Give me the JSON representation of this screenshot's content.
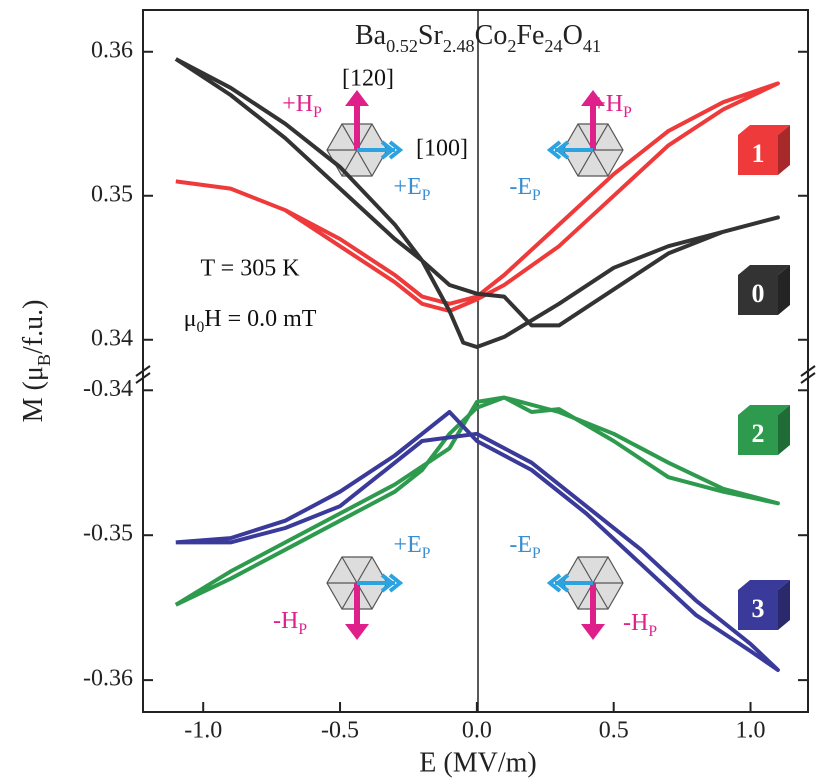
{
  "chart_data": [
    {
      "type": "line",
      "title": "Ba0.52Sr2.48Co2Fe24O41",
      "ylabel": "M (μB/f.u.)",
      "ylim": [
        0.3379,
        0.3629
      ],
      "yticks": [
        0.36,
        0.35,
        0.34
      ],
      "annotations": [
        "T = 305 K",
        "μ0H = 0.0 mT",
        "[120]",
        "[100]",
        "+HP",
        "+EP",
        "-EP",
        "+HP"
      ],
      "series": [
        {
          "name": "1",
          "color": "#ee3a3a",
          "x": [
            -1.1,
            -0.9,
            -0.7,
            -0.5,
            -0.3,
            -0.2,
            -0.1,
            0,
            0.1,
            0.3,
            0.5,
            0.7,
            0.9,
            1.1,
            0.9,
            0.7,
            0.5,
            0.3,
            0.1,
            0,
            -0.1,
            -0.2,
            -0.3,
            -0.5,
            -0.7,
            -0.9,
            -1.1
          ],
          "values": [
            0.351,
            0.3505,
            0.349,
            0.347,
            0.3445,
            0.343,
            0.3425,
            0.343,
            0.3445,
            0.348,
            0.3515,
            0.3545,
            0.3565,
            0.3578,
            0.356,
            0.3535,
            0.35,
            0.3465,
            0.3438,
            0.3428,
            0.342,
            0.3425,
            0.344,
            0.3465,
            0.349,
            0.3505,
            0.351
          ]
        },
        {
          "name": "0",
          "color": "#333333",
          "x": [
            -1.1,
            -0.9,
            -0.7,
            -0.5,
            -0.3,
            -0.2,
            -0.1,
            -0.05,
            0,
            0.1,
            0.3,
            0.5,
            0.7,
            0.9,
            1.1,
            0.9,
            0.7,
            0.5,
            0.3,
            0.2,
            0.1,
            0,
            -0.1,
            -0.2,
            -0.3,
            -0.5,
            -0.7,
            -0.9,
            -1.1
          ],
          "values": [
            0.3595,
            0.3575,
            0.355,
            0.352,
            0.348,
            0.3455,
            0.342,
            0.3398,
            0.3395,
            0.3402,
            0.3425,
            0.345,
            0.3465,
            0.3475,
            0.3485,
            0.3475,
            0.346,
            0.3435,
            0.341,
            0.341,
            0.343,
            0.3432,
            0.3438,
            0.3455,
            0.347,
            0.3505,
            0.354,
            0.357,
            0.3595
          ]
        }
      ]
    },
    {
      "type": "line",
      "xlabel": "E (MV/m)",
      "xlim": [
        -1.22,
        1.21
      ],
      "xticks": [
        {
          "value": -1,
          "label": "-1.0"
        },
        -0.5,
        {
          "value": 0,
          "label": "0.0"
        },
        0.5,
        {
          "value": 1,
          "label": "1.0"
        }
      ],
      "ylim": [
        -0.3622,
        -0.3386
      ],
      "yticks": [
        -0.34,
        -0.35,
        -0.36
      ],
      "annotations": [
        "+EP",
        "-EP",
        "-HP",
        "-HP"
      ],
      "series": [
        {
          "name": "2",
          "color": "#2e9a4e",
          "x": [
            -1.1,
            -0.9,
            -0.7,
            -0.5,
            -0.3,
            -0.1,
            0,
            0.1,
            0.2,
            0.3,
            0.5,
            0.7,
            0.9,
            1.1,
            0.9,
            0.7,
            0.5,
            0.3,
            0.1,
            0,
            -0.1,
            -0.2,
            -0.3,
            -0.5,
            -0.7,
            -0.9,
            -1.1
          ],
          "values": [
            -0.3548,
            -0.3525,
            -0.3505,
            -0.3485,
            -0.3465,
            -0.344,
            -0.3408,
            -0.3405,
            -0.3415,
            -0.3413,
            -0.3435,
            -0.346,
            -0.347,
            -0.3478,
            -0.3468,
            -0.345,
            -0.343,
            -0.3415,
            -0.3405,
            -0.3412,
            -0.343,
            -0.3455,
            -0.347,
            -0.349,
            -0.351,
            -0.353,
            -0.3548
          ]
        },
        {
          "name": "3",
          "color": "#3a3a9a",
          "x": [
            -1.1,
            -0.9,
            -0.7,
            -0.5,
            -0.3,
            -0.2,
            -0.1,
            0,
            0.2,
            0.4,
            0.6,
            0.8,
            1.0,
            1.1,
            1.0,
            0.8,
            0.6,
            0.4,
            0.2,
            0,
            -0.2,
            -0.3,
            -0.5,
            -0.7,
            -0.9,
            -1.1
          ],
          "values": [
            -0.3505,
            -0.3502,
            -0.349,
            -0.347,
            -0.3445,
            -0.343,
            -0.3415,
            -0.3435,
            -0.3455,
            -0.3485,
            -0.352,
            -0.3555,
            -0.358,
            -0.3593,
            -0.3575,
            -0.3545,
            -0.351,
            -0.348,
            -0.345,
            -0.343,
            -0.3435,
            -0.345,
            -0.348,
            -0.3495,
            -0.3505,
            -0.3505
          ]
        }
      ]
    }
  ]
}
